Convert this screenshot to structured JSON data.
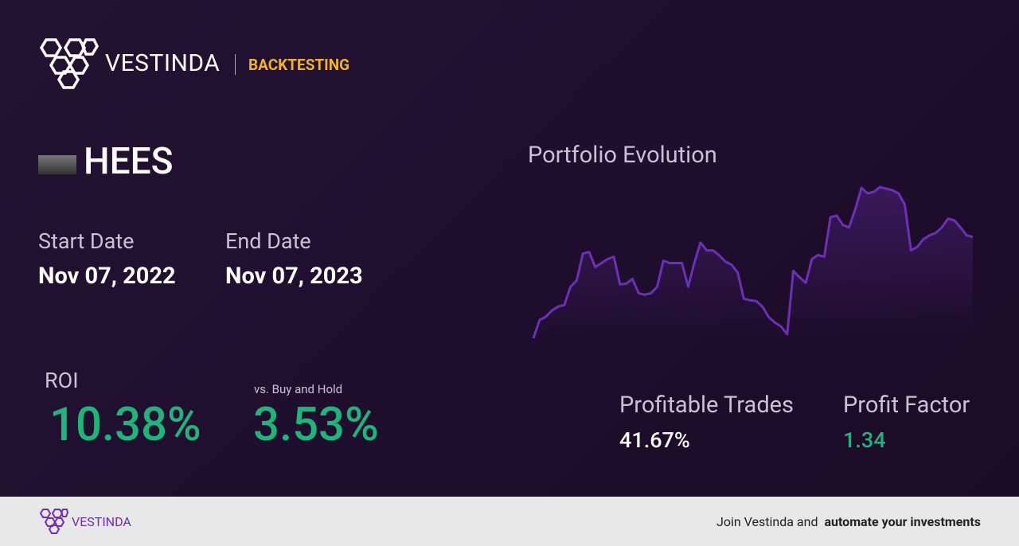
{
  "header": {
    "brand": "VESTINDA",
    "section": "BACKTESTING"
  },
  "ticker": "HEES",
  "dates": {
    "start_label": "Start Date",
    "start_value": "Nov 07, 2022",
    "end_label": "End Date",
    "end_value": "Nov 07, 2023"
  },
  "roi": {
    "label": "ROI",
    "value": "10.38%",
    "compare_label": "vs. Buy and Hold",
    "compare_value": "3.53%"
  },
  "stats": {
    "trades_label": "Profitable Trades",
    "trades_value": "41.67%",
    "factor_label": "Profit Factor",
    "factor_value": "1.34"
  },
  "chart_data": {
    "type": "line",
    "title": "Portfolio Evolution",
    "color": "#6d2fb3",
    "values": [
      5,
      28,
      32,
      40,
      45,
      47,
      70,
      78,
      112,
      114,
      95,
      100,
      105,
      108,
      73,
      74,
      80,
      62,
      60,
      62,
      70,
      103,
      100,
      100,
      100,
      70,
      100,
      126,
      116,
      116,
      110,
      102,
      98,
      88,
      55,
      53,
      52,
      45,
      32,
      25,
      20,
      10,
      90,
      82,
      75,
      105,
      110,
      108,
      158,
      160,
      148,
      145,
      168,
      195,
      188,
      190,
      196,
      194,
      192,
      188,
      174,
      116,
      120,
      130,
      135,
      138,
      145,
      156,
      154,
      145,
      135,
      133
    ]
  },
  "footer": {
    "brand": "VESTINDA",
    "cta_prefix": "Join Vestinda and",
    "cta_bold": "automate your investments"
  }
}
